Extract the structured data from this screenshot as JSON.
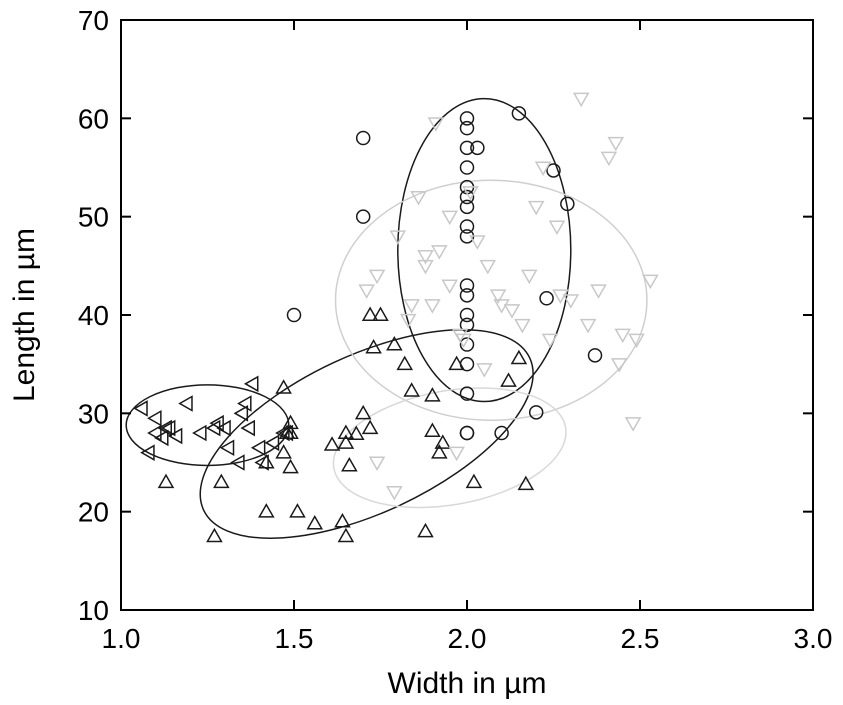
{
  "chart_data": {
    "type": "scatter",
    "title": "",
    "xlabel": "Width in µm",
    "ylabel": "Length in µm",
    "xlim": [
      1.0,
      3.0
    ],
    "ylim": [
      10,
      70
    ],
    "xticks": [
      "1.0",
      "1.5",
      "2.0",
      "2.5",
      "3.0"
    ],
    "yticks": [
      "10",
      "20",
      "30",
      "40",
      "50",
      "60",
      "70"
    ],
    "grid": false,
    "legend": "none",
    "series": [
      {
        "marker": "circle",
        "color": "#1a1a1a",
        "x": [
          1.5,
          1.7,
          1.7,
          2.0,
          2.0,
          2.0,
          2.0,
          2.0,
          2.0,
          2.0,
          2.0,
          2.0,
          2.0,
          2.0,
          2.0,
          2.0,
          2.0,
          2.0,
          2.0,
          2.0,
          2.0,
          2.03,
          2.15,
          2.25,
          2.29,
          2.23,
          2.37,
          2.2,
          2.1
        ],
        "y": [
          40.0,
          58.0,
          50.0,
          60.0,
          59.0,
          57.0,
          55.0,
          53.0,
          52.0,
          51.0,
          49.0,
          48.0,
          43.0,
          42.0,
          40.0,
          39.0,
          37.0,
          35.0,
          32.0,
          28.0,
          28.0,
          57.0,
          60.5,
          54.7,
          51.3,
          41.7,
          35.9,
          30.1,
          28.0
        ]
      },
      {
        "marker": "triangle-up",
        "color": "#1a1a1a",
        "x": [
          1.13,
          1.27,
          1.29,
          1.42,
          1.51,
          1.56,
          1.61,
          1.64,
          1.65,
          1.66,
          1.68,
          1.65,
          1.65,
          1.7,
          1.72,
          1.73,
          1.72,
          1.79,
          1.82,
          1.84,
          1.9,
          1.9,
          1.92,
          1.93,
          1.97,
          2.02,
          2.12,
          2.15,
          2.17,
          1.88,
          1.42,
          1.47,
          1.49,
          1.48,
          1.49,
          1.47,
          1.49,
          1.75
        ],
        "y": [
          23.0,
          17.5,
          23.0,
          20.0,
          20.0,
          18.8,
          26.8,
          19.0,
          17.5,
          24.7,
          27.9,
          28.0,
          27.0,
          30.0,
          28.5,
          36.7,
          40.0,
          37.0,
          35.0,
          32.3,
          31.8,
          28.2,
          26.0,
          27.0,
          35.0,
          23.0,
          33.3,
          35.6,
          22.8,
          18.0,
          25.0,
          32.6,
          28.0,
          28.0,
          24.5,
          26.0,
          29.0,
          40.0
        ]
      },
      {
        "marker": "triangle-left",
        "color": "#1a1a1a",
        "x": [
          1.06,
          1.08,
          1.1,
          1.1,
          1.12,
          1.13,
          1.14,
          1.16,
          1.19,
          1.23,
          1.27,
          1.28,
          1.3,
          1.31,
          1.34,
          1.35,
          1.36,
          1.37,
          1.38,
          1.4,
          1.41,
          1.44,
          1.47,
          1.48
        ],
        "y": [
          30.5,
          26.0,
          28.0,
          29.5,
          27.5,
          28.5,
          28.5,
          27.7,
          31.0,
          28.0,
          28.5,
          29.0,
          28.5,
          26.5,
          25.0,
          30.0,
          31.0,
          28.5,
          33.0,
          26.5,
          25.0,
          27.0,
          28.0,
          28.0
        ]
      },
      {
        "marker": "triangle-down",
        "color": "#c8c8c8",
        "x": [
          1.71,
          1.74,
          1.8,
          1.84,
          1.86,
          1.88,
          1.92,
          1.95,
          1.98,
          2.01,
          2.06,
          2.1,
          2.13,
          2.18,
          2.2,
          2.24,
          2.27,
          2.3,
          2.35,
          2.38,
          2.43,
          2.45,
          2.53,
          2.33,
          2.41,
          2.44,
          2.49,
          2.48,
          1.91,
          1.88,
          1.95,
          1.83,
          1.9,
          2.03,
          2.09,
          2.26,
          2.22,
          2.16,
          1.99,
          2.05,
          1.74,
          1.79,
          1.97
        ],
        "y": [
          42.5,
          44.0,
          48.0,
          41.0,
          52.0,
          45.0,
          46.5,
          50.0,
          38.0,
          52.5,
          45.0,
          41.0,
          40.5,
          44.0,
          51.0,
          37.5,
          42.0,
          41.5,
          39.0,
          42.5,
          57.5,
          38.0,
          43.5,
          62.0,
          56.0,
          35.0,
          37.5,
          29.0,
          59.5,
          46.0,
          43.0,
          39.5,
          41.0,
          47.5,
          42.0,
          49.0,
          55.0,
          39.0,
          37.5,
          34.5,
          25.0,
          22.0,
          26.0
        ]
      }
    ],
    "ellipses": [
      {
        "color": "#1a1a1a",
        "cx": 1.25,
        "cy": 28.8,
        "rx": 0.235,
        "ry": 4.1,
        "rotate": 0
      },
      {
        "color": "#1a1a1a",
        "cx": 1.71,
        "cy": 27.9,
        "rx": 0.52,
        "ry": 8.0,
        "rotate": -25
      },
      {
        "color": "#1a1a1a",
        "cx": 2.05,
        "cy": 46.6,
        "rx": 0.25,
        "ry": 15.4,
        "rotate": 0
      },
      {
        "color": "#cfcfcf",
        "cx": 2.07,
        "cy": 41.5,
        "rx": 0.45,
        "ry": 12.2,
        "rotate": 0
      },
      {
        "color": "#d8d8d8",
        "cx": 1.95,
        "cy": 26.5,
        "rx": 0.34,
        "ry": 5.8,
        "rotate": -10
      }
    ]
  }
}
